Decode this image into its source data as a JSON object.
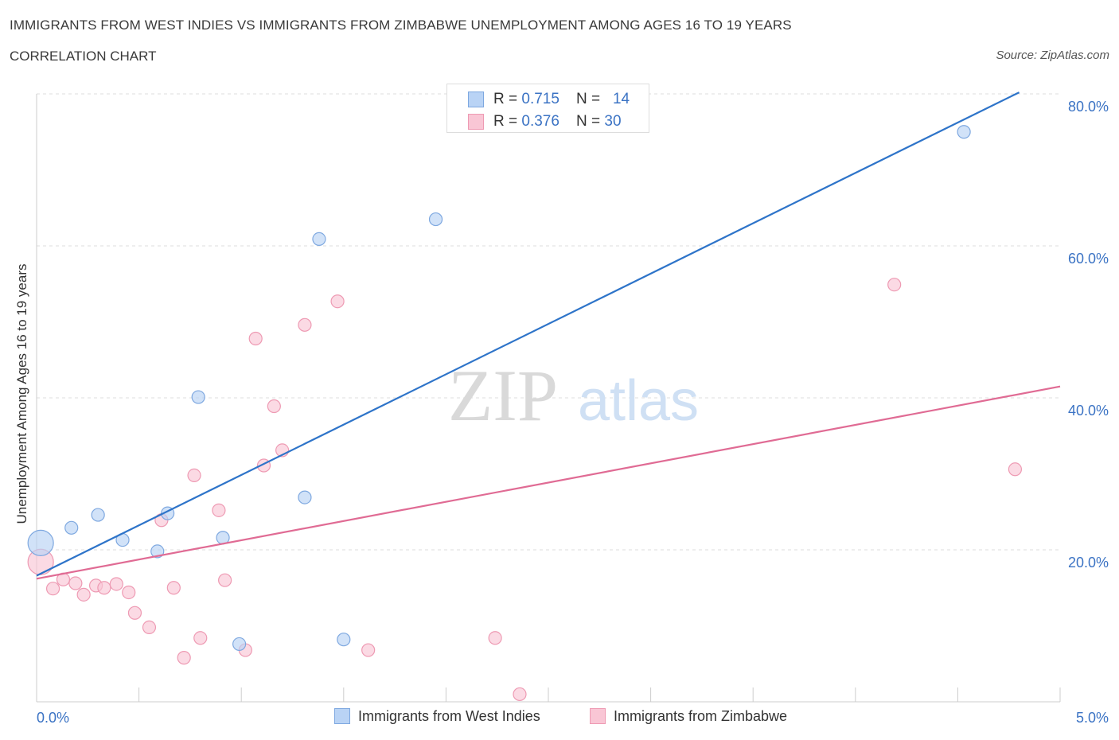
{
  "header": {
    "title": "IMMIGRANTS FROM WEST INDIES VS IMMIGRANTS FROM ZIMBABWE UNEMPLOYMENT AMONG AGES 16 TO 19 YEARS",
    "subtitle": "CORRELATION CHART",
    "source": "Source: ZipAtlas.com"
  },
  "watermark": {
    "zip": "ZIP",
    "atlas": "atlas"
  },
  "legend_top": {
    "rows": [
      {
        "r_label": "R = ",
        "r_value": "0.715",
        "n_label": "N = ",
        "n_value": "14"
      },
      {
        "r_label": "R = ",
        "r_value": "0.376",
        "n_label": "N = ",
        "n_value": "30"
      }
    ]
  },
  "legend_bottom": {
    "series1": "Immigrants from West Indies",
    "series2": "Immigrants from Zimbabwe"
  },
  "colors": {
    "blue_fill": "#b9d3f5",
    "blue_stroke": "#7ea8e0",
    "blue_line": "#2e74c9",
    "pink_fill": "#f9c6d5",
    "pink_stroke": "#ee9ab3",
    "pink_line": "#e06b94",
    "tick_text": "#3b73c4",
    "grid": "#dddddd"
  },
  "chart_data": {
    "type": "scatter",
    "title": "IMMIGRANTS FROM WEST INDIES VS IMMIGRANTS FROM ZIMBABWE UNEMPLOYMENT AMONG AGES 16 TO 19 YEARS",
    "xlabel": "",
    "ylabel": "Unemployment Among Ages 16 to 19 years",
    "xlim": [
      0,
      5
    ],
    "ylim": [
      0,
      80
    ],
    "x_tick_labels": [
      "0.0%",
      "5.0%"
    ],
    "y_ticks": [
      20,
      40,
      60,
      80
    ],
    "y_tick_labels": [
      "20.0%",
      "40.0%",
      "60.0%",
      "80.0%"
    ],
    "series": [
      {
        "name": "Immigrants from West Indies",
        "R": 0.715,
        "N": 14,
        "points": [
          {
            "x": 0.02,
            "y": 20.9,
            "big": true
          },
          {
            "x": 0.17,
            "y": 22.9
          },
          {
            "x": 0.3,
            "y": 24.6
          },
          {
            "x": 0.42,
            "y": 21.3
          },
          {
            "x": 0.59,
            "y": 19.8
          },
          {
            "x": 0.64,
            "y": 24.8
          },
          {
            "x": 0.79,
            "y": 40.1
          },
          {
            "x": 0.91,
            "y": 21.6
          },
          {
            "x": 0.99,
            "y": 7.6
          },
          {
            "x": 1.31,
            "y": 26.9
          },
          {
            "x": 1.38,
            "y": 60.9
          },
          {
            "x": 1.5,
            "y": 8.2
          },
          {
            "x": 1.95,
            "y": 63.5
          },
          {
            "x": 4.53,
            "y": 75.0
          }
        ],
        "trend": {
          "x": [
            0.0,
            4.8
          ],
          "y": [
            16.6,
            80.2
          ]
        }
      },
      {
        "name": "Immigrants from Zimbabwe",
        "R": 0.376,
        "N": 30,
        "points": [
          {
            "x": 0.02,
            "y": 18.4,
            "big": true
          },
          {
            "x": 0.08,
            "y": 14.9
          },
          {
            "x": 0.13,
            "y": 16.1
          },
          {
            "x": 0.19,
            "y": 15.6
          },
          {
            "x": 0.23,
            "y": 14.1
          },
          {
            "x": 0.29,
            "y": 15.3
          },
          {
            "x": 0.33,
            "y": 15.0
          },
          {
            "x": 0.39,
            "y": 15.5
          },
          {
            "x": 0.45,
            "y": 14.4
          },
          {
            "x": 0.48,
            "y": 11.7
          },
          {
            "x": 0.55,
            "y": 9.8
          },
          {
            "x": 0.61,
            "y": 23.9
          },
          {
            "x": 0.67,
            "y": 15.0
          },
          {
            "x": 0.72,
            "y": 5.8
          },
          {
            "x": 0.77,
            "y": 29.8
          },
          {
            "x": 0.8,
            "y": 8.4
          },
          {
            "x": 0.89,
            "y": 25.2
          },
          {
            "x": 0.92,
            "y": 16.0
          },
          {
            "x": 1.02,
            "y": 6.8
          },
          {
            "x": 1.07,
            "y": 47.8
          },
          {
            "x": 1.11,
            "y": 31.1
          },
          {
            "x": 1.16,
            "y": 38.9
          },
          {
            "x": 1.2,
            "y": 33.1
          },
          {
            "x": 1.31,
            "y": 49.6
          },
          {
            "x": 1.47,
            "y": 52.7
          },
          {
            "x": 1.62,
            "y": 6.8
          },
          {
            "x": 2.24,
            "y": 8.4
          },
          {
            "x": 2.36,
            "y": 1.0
          },
          {
            "x": 4.19,
            "y": 54.9
          },
          {
            "x": 4.78,
            "y": 30.6
          }
        ],
        "trend": {
          "x": [
            0.0,
            5.0
          ],
          "y": [
            16.2,
            41.5
          ]
        }
      }
    ]
  }
}
